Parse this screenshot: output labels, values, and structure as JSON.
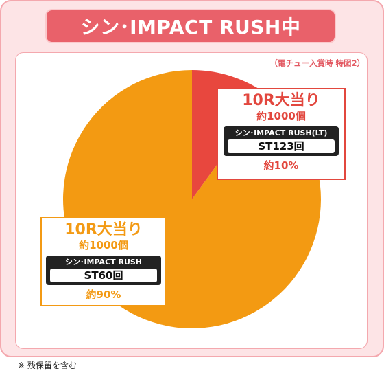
{
  "header": {
    "title": "シン･IMPACT RUSH中"
  },
  "note": "（電チュー入賞時 特図2）",
  "chart_data": {
    "type": "pie",
    "title": "",
    "slices": [
      {
        "name": "シン･IMPACT RUSH(LT)",
        "value": 10,
        "color": "#e8473e"
      },
      {
        "name": "シン･IMPACT RUSH",
        "value": 90,
        "color": "#f39a12"
      }
    ]
  },
  "labels": {
    "lt": {
      "round": "10R大当り",
      "payout": "約1000個",
      "rush": "シン･IMPACT RUSH(LT)",
      "st": "ST123回",
      "pct": "約10%"
    },
    "main": {
      "round": "10R大当り",
      "payout": "約1000個",
      "rush": "シン･IMPACT RUSH",
      "st": "ST60回",
      "pct": "約90%"
    }
  },
  "footnote": "※ 残保留を含む"
}
